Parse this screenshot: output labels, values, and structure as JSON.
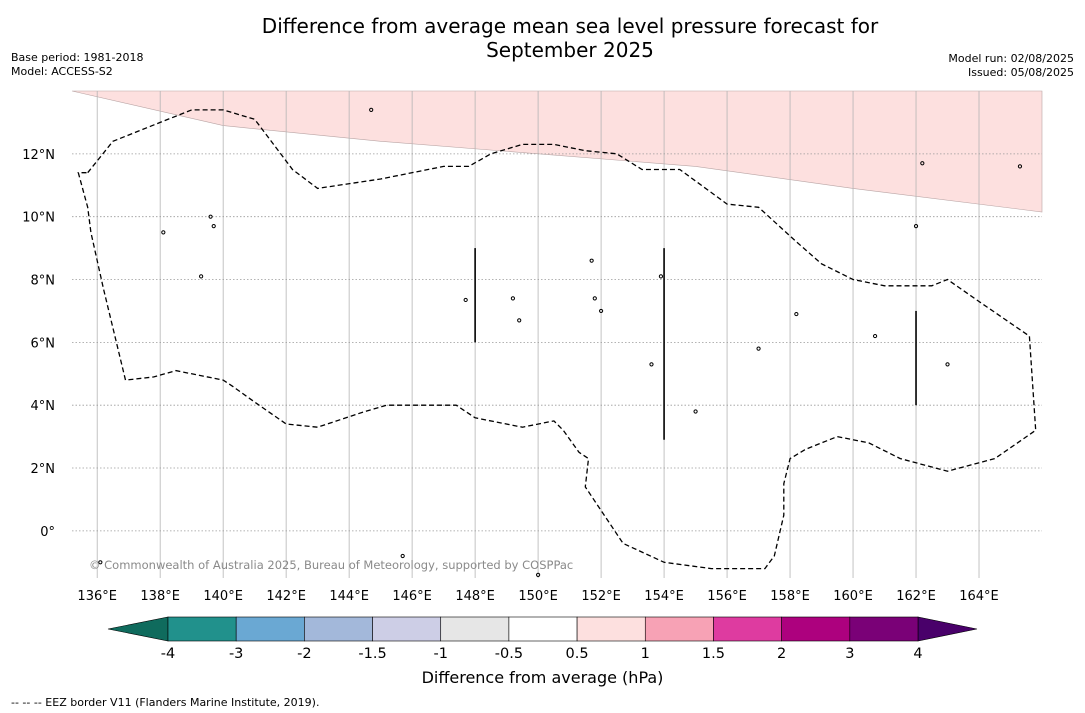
{
  "title_line1": "Difference from average mean sea level pressure forecast for",
  "title_line2": "September 2025",
  "meta_left": [
    "Base period: 1981-2018",
    "Model: ACCESS-S2"
  ],
  "meta_right": [
    "Model run: 02/08/2025",
    "Issued: 05/08/2025"
  ],
  "copyright": "© Commonwealth of Australia 2025, Bureau of Meteorology, supported by COSPPac",
  "footnote": "--  --  -- EEZ border V11 (Flanders Marine Institute, 2019).",
  "map": {
    "lon_range": [
      135.2,
      166
    ],
    "lat_range": [
      -1.5,
      14
    ],
    "lon_ticks": [
      136,
      138,
      140,
      142,
      144,
      146,
      148,
      150,
      152,
      154,
      156,
      158,
      160,
      162,
      164
    ],
    "lon_labels": [
      "136°E",
      "138°E",
      "140°E",
      "142°E",
      "144°E",
      "146°E",
      "148°E",
      "150°E",
      "152°E",
      "154°E",
      "156°E",
      "158°E",
      "160°E",
      "162°E",
      "164°E"
    ],
    "lat_ticks": [
      0,
      2,
      4,
      6,
      8,
      10,
      12
    ],
    "lat_labels": [
      "0°",
      "2°N",
      "4°N",
      "6°N",
      "8°N",
      "10°N",
      "12°N"
    ],
    "anomaly_region": {
      "category": "0.5 to 1",
      "color": "#fde0df",
      "boundary": [
        [
          135.2,
          14
        ],
        [
          140,
          12.9
        ],
        [
          145,
          12.4
        ],
        [
          150,
          12.0
        ],
        [
          155,
          11.6
        ],
        [
          160,
          10.9
        ],
        [
          166,
          10.15
        ],
        [
          166,
          14
        ]
      ]
    },
    "eez_border": [
      [
        135.7,
        11.4
      ],
      [
        136.5,
        12.4
      ],
      [
        138,
        13.0
      ],
      [
        139,
        13.4
      ],
      [
        140,
        13.4
      ],
      [
        141,
        13.1
      ],
      [
        142.2,
        11.5
      ],
      [
        143,
        10.9
      ],
      [
        145,
        11.2
      ],
      [
        147,
        11.6
      ],
      [
        147.6,
        11.6
      ],
      [
        147.8,
        11.6
      ],
      [
        148.5,
        12.0
      ],
      [
        149.5,
        12.3
      ],
      [
        150.5,
        12.3
      ],
      [
        151.5,
        12.1
      ],
      [
        152.5,
        12.0
      ],
      [
        153.3,
        11.5
      ],
      [
        154.5,
        11.5
      ],
      [
        156,
        10.4
      ],
      [
        157,
        10.3
      ],
      [
        158.2,
        9.2
      ],
      [
        159,
        8.5
      ],
      [
        160,
        8.0
      ],
      [
        161,
        7.8
      ],
      [
        162,
        7.8
      ],
      [
        162.5,
        7.8
      ],
      [
        163,
        8.0
      ],
      [
        164,
        7.3
      ],
      [
        165.6,
        6.2
      ],
      [
        165.8,
        3.2
      ],
      [
        164.5,
        2.3
      ],
      [
        163,
        1.9
      ],
      [
        161.5,
        2.3
      ],
      [
        160.5,
        2.8
      ],
      [
        159.5,
        3.0
      ],
      [
        158.5,
        2.6
      ],
      [
        158,
        2.3
      ],
      [
        157.8,
        1.5
      ],
      [
        157.8,
        0.5
      ],
      [
        157.5,
        -0.8
      ],
      [
        157.2,
        -1.2
      ],
      [
        155.5,
        -1.2
      ],
      [
        154,
        -1.0
      ],
      [
        152.7,
        -0.4
      ],
      [
        151.5,
        1.4
      ],
      [
        151.6,
        2.3
      ],
      [
        151.3,
        2.5
      ],
      [
        150.8,
        3.2
      ],
      [
        150.5,
        3.5
      ],
      [
        149.5,
        3.3
      ],
      [
        148,
        3.6
      ],
      [
        147.4,
        4.0
      ],
      [
        146,
        4.0
      ],
      [
        145.2,
        4.0
      ],
      [
        144.5,
        3.8
      ],
      [
        143,
        3.3
      ],
      [
        142,
        3.4
      ],
      [
        141,
        4.1
      ],
      [
        140.3,
        4.6
      ],
      [
        140,
        4.8
      ],
      [
        139,
        5.0
      ],
      [
        138.5,
        5.1
      ],
      [
        137.8,
        4.9
      ],
      [
        136.9,
        4.8
      ],
      [
        136.2,
        7.7
      ],
      [
        135.8,
        9.5
      ],
      [
        135.7,
        10.3
      ],
      [
        135.4,
        11.4
      ],
      [
        135.7,
        11.4
      ]
    ],
    "border_segments": [
      {
        "lon": 148,
        "lat": [
          6,
          9
        ]
      },
      {
        "lon": 154,
        "lat": [
          2.9,
          9
        ]
      },
      {
        "lon": 162,
        "lat": [
          4,
          7
        ]
      }
    ],
    "islands": [
      {
        "lon": 144.7,
        "lat": 13.4
      },
      {
        "lon": 138.1,
        "lat": 9.5
      },
      {
        "lon": 139.6,
        "lat": 10.0
      },
      {
        "lon": 139.7,
        "lat": 9.7
      },
      {
        "lon": 139.3,
        "lat": 8.1
      },
      {
        "lon": 151.7,
        "lat": 8.6
      },
      {
        "lon": 153.9,
        "lat": 8.1
      },
      {
        "lon": 151.8,
        "lat": 7.4
      },
      {
        "lon": 147.7,
        "lat": 7.35
      },
      {
        "lon": 149.2,
        "lat": 7.4
      },
      {
        "lon": 149.4,
        "lat": 6.7
      },
      {
        "lon": 152.0,
        "lat": 7.0
      },
      {
        "lon": 158.2,
        "lat": 6.9
      },
      {
        "lon": 157.0,
        "lat": 5.8
      },
      {
        "lon": 153.6,
        "lat": 5.3
      },
      {
        "lon": 155.0,
        "lat": 3.8
      },
      {
        "lon": 160.7,
        "lat": 6.2
      },
      {
        "lon": 163.0,
        "lat": 5.3
      },
      {
        "lon": 162.0,
        "lat": 9.7
      },
      {
        "lon": 162.2,
        "lat": 11.7
      },
      {
        "lon": 165.3,
        "lat": 11.6
      },
      {
        "lon": 145.7,
        "lat": -0.8
      },
      {
        "lon": 150.0,
        "lat": -1.4
      },
      {
        "lon": 136.1,
        "lat": -1.0
      }
    ]
  },
  "colorbar": {
    "title": "Difference from average (hPa)",
    "labels": [
      "-4",
      "-3",
      "-2",
      "-1.5",
      "-1",
      "-0.5",
      "0.5",
      "1",
      "1.5",
      "2",
      "3",
      "4"
    ],
    "colors": [
      "#21918c",
      "#6aa8d3",
      "#a3b8da",
      "#cdcee6",
      "#e6e6e6",
      "#ffffff",
      "#fde0df",
      "#f7a2b5",
      "#de3ba0",
      "#ad017e",
      "#7a0177"
    ],
    "extend_low_color": "#0f6b5d",
    "extend_high_color": "#49006a"
  }
}
